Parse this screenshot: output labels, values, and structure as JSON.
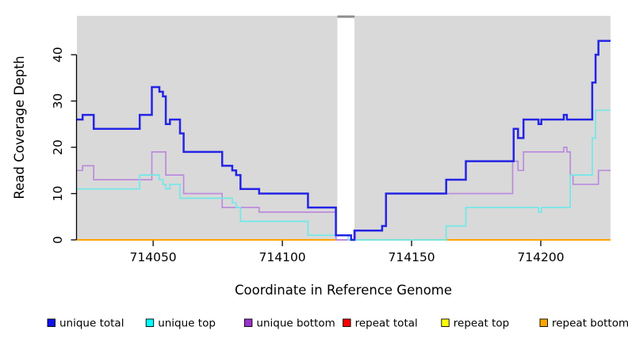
{
  "figure": {
    "background": "#FFFFFF",
    "plot_bg": "#D9D9D9",
    "gap_cap_color": "#8E8E8E",
    "gap_fill": "#FFFFFF",
    "axis_color": "#000000",
    "text_color": "#000000"
  },
  "chart_data": {
    "type": "step-line",
    "title": "",
    "xlabel": "Coordinate in Reference Genome",
    "ylabel": "Read Coverage Depth",
    "x_ticks": [
      714050,
      714100,
      714150,
      714200
    ],
    "y_ticks": [
      0,
      10,
      20,
      30,
      40
    ],
    "xlim": [
      714020.5,
      714227
    ],
    "ylim": [
      0,
      48.4
    ],
    "grid": false,
    "gap": {
      "x0": 714121.3,
      "x1": 714127.9
    },
    "series": [
      {
        "name": "repeat top",
        "color": "#FFFF00",
        "width": 1.7,
        "steps": [
          [
            714020.5,
            0
          ],
          [
            714227,
            0
          ]
        ]
      },
      {
        "name": "repeat bottom",
        "color": "#FFA500",
        "width": 2.0,
        "steps": [
          [
            714020.5,
            0
          ],
          [
            714227,
            0
          ]
        ]
      },
      {
        "name": "repeat total",
        "color": "#E96A8D",
        "width": 1.7,
        "steps": [
          [
            714121.3,
            0
          ],
          [
            714128.3,
            0
          ]
        ]
      },
      {
        "name": "unique bottom",
        "color": "#BB8BDC",
        "width": 1.7,
        "steps": [
          [
            714020.5,
            15
          ],
          [
            714022.7,
            16
          ],
          [
            714027,
            13
          ],
          [
            714049.5,
            19
          ],
          [
            714054.9,
            14
          ],
          [
            714061.8,
            10
          ],
          [
            714076.7,
            7
          ],
          [
            714091,
            6
          ],
          [
            714120.7,
            0
          ],
          [
            714128.3,
            2
          ],
          [
            714138.6,
            3
          ],
          [
            714140.1,
            10
          ],
          [
            714189.1,
            17
          ],
          [
            714191.2,
            15
          ],
          [
            714193.3,
            19
          ],
          [
            714208.9,
            20
          ],
          [
            714210.1,
            19
          ],
          [
            714211.4,
            14
          ],
          [
            714212.5,
            12
          ],
          [
            714222.3,
            15
          ],
          [
            714227,
            15
          ]
        ]
      },
      {
        "name": "unique top",
        "color": "#72E8E8",
        "width": 1.7,
        "steps": [
          [
            714020.5,
            11
          ],
          [
            714044.8,
            14
          ],
          [
            714052.4,
            13
          ],
          [
            714053.8,
            12
          ],
          [
            714054.9,
            11
          ],
          [
            714056.5,
            12
          ],
          [
            714060.4,
            9
          ],
          [
            714080.6,
            8
          ],
          [
            714082.1,
            7
          ],
          [
            714083.8,
            4
          ],
          [
            714109.9,
            1
          ],
          [
            714125.5,
            0
          ],
          [
            714163.4,
            3
          ],
          [
            714171,
            7
          ],
          [
            714199.1,
            6
          ],
          [
            714200.2,
            7
          ],
          [
            714211.4,
            14
          ],
          [
            714219.9,
            22
          ],
          [
            714221.2,
            28
          ],
          [
            714227,
            28
          ]
        ]
      },
      {
        "name": "unique total",
        "color": "#2424E6",
        "width": 2.5,
        "steps": [
          [
            714020.5,
            26
          ],
          [
            714022.7,
            27
          ],
          [
            714027,
            24
          ],
          [
            714044.8,
            27
          ],
          [
            714049.5,
            33
          ],
          [
            714052.4,
            32
          ],
          [
            714053.8,
            31
          ],
          [
            714054.9,
            25
          ],
          [
            714056.5,
            26
          ],
          [
            714060.4,
            23
          ],
          [
            714061.8,
            19
          ],
          [
            714076.7,
            16
          ],
          [
            714080.6,
            15
          ],
          [
            714082.1,
            14
          ],
          [
            714083.8,
            11
          ],
          [
            714091,
            10
          ],
          [
            714109.9,
            7
          ],
          [
            714120.7,
            1
          ],
          [
            714126.6,
            0
          ],
          [
            714127.9,
            2
          ],
          [
            714138.6,
            3
          ],
          [
            714140.1,
            10
          ],
          [
            714163.4,
            13
          ],
          [
            714171,
            17
          ],
          [
            714189.5,
            24
          ],
          [
            714191.2,
            22
          ],
          [
            714193.3,
            26
          ],
          [
            714199.1,
            25
          ],
          [
            714200.2,
            26
          ],
          [
            714208.9,
            27
          ],
          [
            714210.1,
            26
          ],
          [
            714219.9,
            34
          ],
          [
            714221.2,
            40
          ],
          [
            714222.3,
            43
          ],
          [
            714227,
            43
          ]
        ]
      }
    ],
    "overlays": [
      {
        "name": "unique-top-at-zero-blend",
        "color": "#90CC90",
        "width": 1.8,
        "y": 0,
        "x0": 714127.9,
        "x1": 714163.4
      }
    ]
  },
  "legend": {
    "items": [
      {
        "label": "unique total",
        "swatch": "#1010EE"
      },
      {
        "label": "unique top",
        "swatch": "#00FFFF"
      },
      {
        "label": "unique bottom",
        "swatch": "#9933CC"
      },
      {
        "label": "repeat total",
        "swatch": "#FF0000"
      },
      {
        "label": "repeat top",
        "swatch": "#FFFF00"
      },
      {
        "label": "repeat bottom",
        "swatch": "#FFA500"
      }
    ]
  }
}
